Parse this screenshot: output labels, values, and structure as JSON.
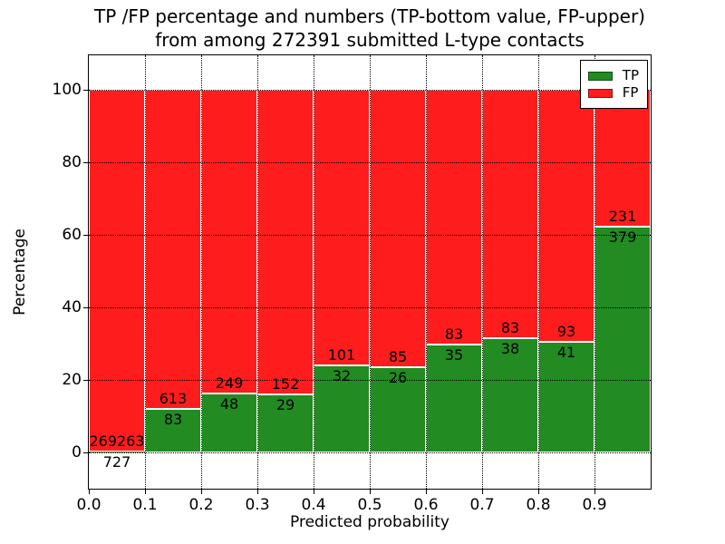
{
  "title": {
    "line1": "TP /FP percentage and numbers (TP-bottom value, FP-upper)",
    "line2": "from among 272391 submitted L-type contacts"
  },
  "axes": {
    "xlabel": "Predicted probability",
    "ylabel": "Percentage",
    "x_ticks": [
      "0.0",
      "0.1",
      "0.2",
      "0.3",
      "0.4",
      "0.5",
      "0.6",
      "0.7",
      "0.8",
      "0.9"
    ],
    "y_ticks": [
      "0",
      "20",
      "40",
      "60",
      "80",
      "100"
    ],
    "xlim": [
      0.0,
      1.0
    ],
    "ylim": [
      -10,
      110
    ],
    "grid": "dotted"
  },
  "legend": {
    "position": "upper right",
    "items": [
      {
        "label": "TP",
        "color": "#228b22"
      },
      {
        "label": "FP",
        "color": "#fe1c1c"
      }
    ]
  },
  "colors": {
    "tp_green": "#228b22",
    "fp_red": "#fe1c1c",
    "bar_edge": "#ffffff",
    "grid": "#000000",
    "background": "#ffffff"
  },
  "chart_data": {
    "type": "bar",
    "stacked": true,
    "normalized": "percent-of-bin-total",
    "title": "TP /FP percentage and numbers (TP-bottom value, FP-upper) from among 272391 submitted L-type contacts",
    "xlabel": "Predicted probability",
    "ylabel": "Percentage",
    "total_contacts": 272391,
    "bin_edges": [
      0.0,
      0.1,
      0.2,
      0.3,
      0.4,
      0.5,
      0.6,
      0.7,
      0.8,
      0.9,
      1.0
    ],
    "categories": [
      "0.0-0.1",
      "0.1-0.2",
      "0.2-0.3",
      "0.3-0.4",
      "0.4-0.5",
      "0.5-0.6",
      "0.6-0.7",
      "0.7-0.8",
      "0.8-0.9",
      "0.9-1.0"
    ],
    "series": [
      {
        "name": "TP",
        "color": "#228b22",
        "values": [
          727,
          83,
          48,
          29,
          32,
          26,
          35,
          38,
          41,
          379
        ]
      },
      {
        "name": "FP",
        "color": "#fe1c1c",
        "values": [
          269263,
          613,
          249,
          152,
          101,
          85,
          83,
          83,
          93,
          231
        ]
      }
    ],
    "tp_percent_heights": [
      0.27,
      11.93,
      16.16,
      16.02,
      24.06,
      23.42,
      29.66,
      31.4,
      30.6,
      62.13
    ],
    "legend_position": "upper right",
    "grid": "dotted",
    "ylim": [
      -10,
      110
    ]
  }
}
